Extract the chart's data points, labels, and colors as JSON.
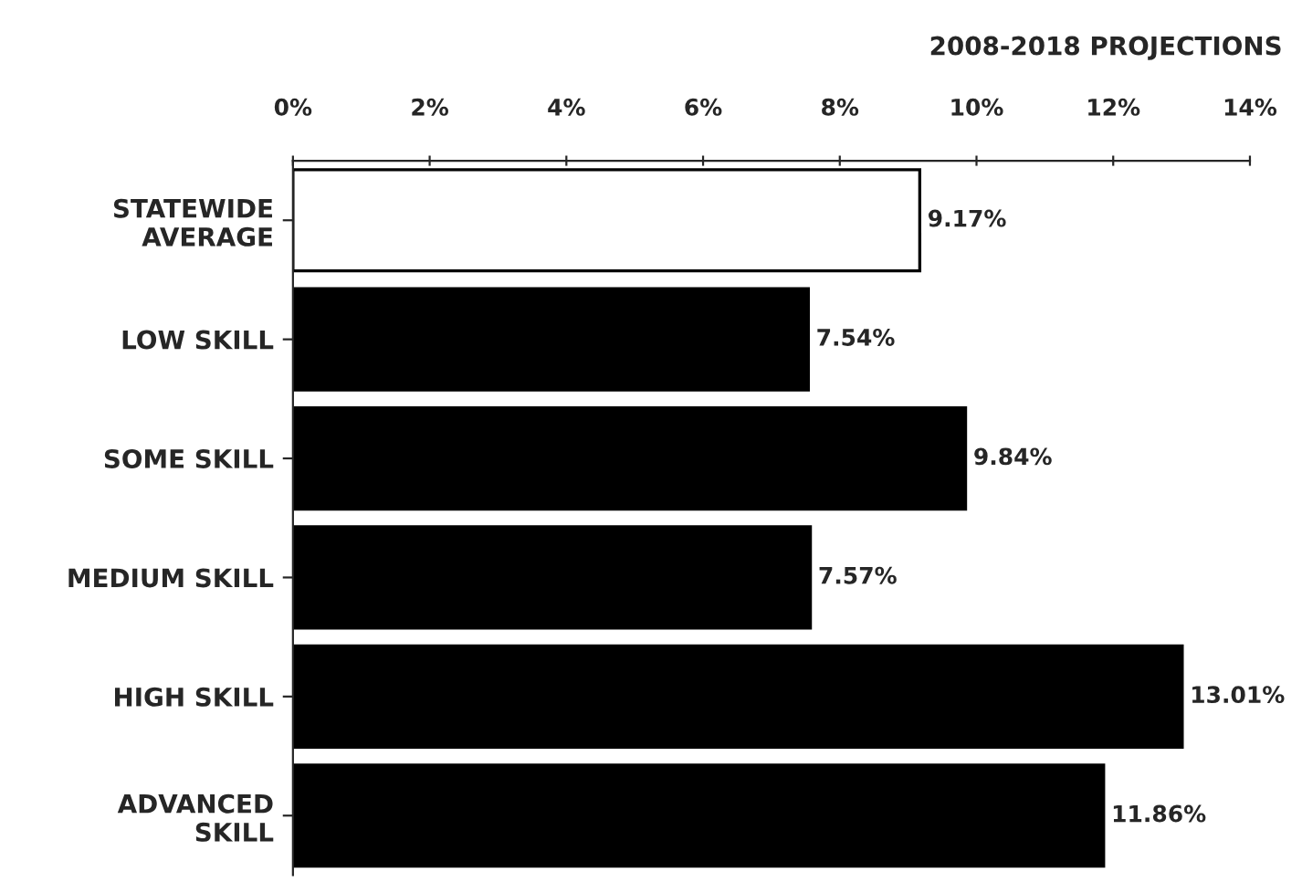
{
  "chart_data": {
    "type": "bar",
    "orientation": "horizontal",
    "title": "2008-2018 PROJECTIONS",
    "categories": [
      "STATEWIDE\nAVERAGE",
      "LOW SKILL",
      "SOME SKILL",
      "MEDIUM SKILL",
      "HIGH SKILL",
      "ADVANCED\nSKILL"
    ],
    "values": [
      9.17,
      7.54,
      9.84,
      7.57,
      13.01,
      11.86
    ],
    "colors": [
      "#ffffff",
      "#000000",
      "#000000",
      "#000000",
      "#000000",
      "#000000"
    ],
    "value_labels": [
      "9.17%",
      "7.54%",
      "9.84%",
      "7.57%",
      "13.01%",
      "11.86%"
    ],
    "xlim": [
      0,
      14
    ],
    "xticks": [
      {
        "value": 0,
        "label": "0%"
      },
      {
        "value": 2,
        "label": "2%"
      },
      {
        "value": 4,
        "label": "4%"
      },
      {
        "value": 6,
        "label": "6%"
      },
      {
        "value": 8,
        "label": "8%"
      },
      {
        "value": 10,
        "label": "10%"
      },
      {
        "value": 12,
        "label": "12%"
      },
      {
        "value": 14,
        "label": "14%"
      }
    ],
    "grid": false
  }
}
